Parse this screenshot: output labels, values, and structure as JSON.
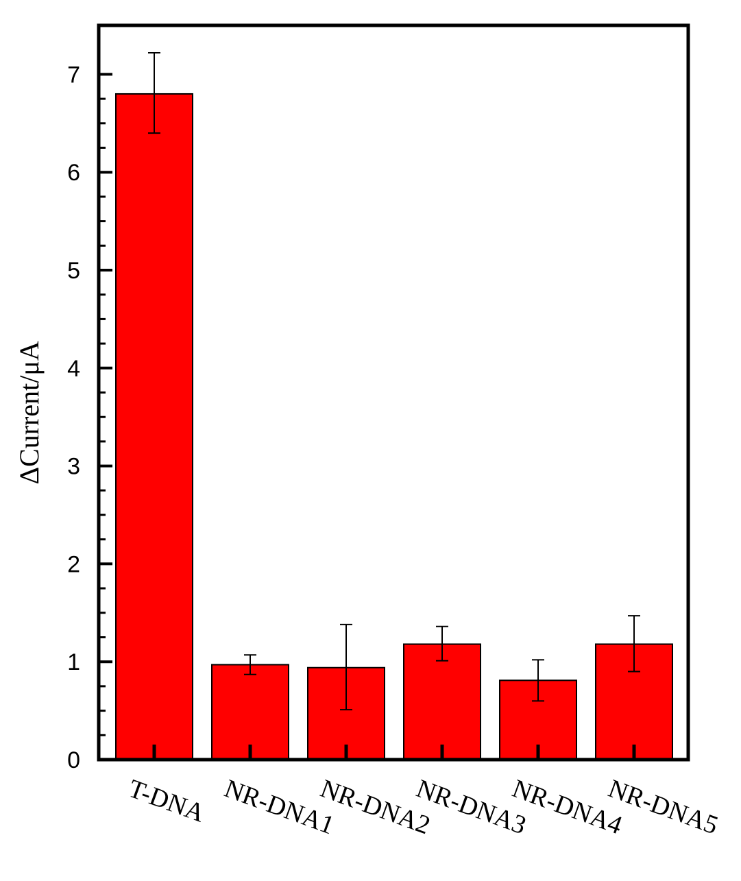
{
  "chart_data": {
    "type": "bar",
    "title": "",
    "xlabel": "",
    "ylabel": "ΔCurrent/μA",
    "categories": [
      "T-DNA",
      "NR-DNA1",
      "NR-DNA2",
      "NR-DNA3",
      "NR-DNA4",
      "NR-DNA5"
    ],
    "values": [
      6.8,
      0.97,
      0.94,
      1.18,
      0.81,
      1.18
    ],
    "error_low": [
      6.4,
      0.87,
      0.51,
      1.01,
      0.6,
      0.9
    ],
    "error_high": [
      7.22,
      1.07,
      1.38,
      1.36,
      1.02,
      1.47
    ],
    "ylim": [
      0,
      7.5
    ],
    "yticks": [
      "0",
      "1",
      "2",
      "3",
      "4",
      "5",
      "6",
      "7"
    ],
    "grid": false,
    "legend": "none",
    "bar_color": "#ff0000",
    "edge_color": "#000000"
  }
}
